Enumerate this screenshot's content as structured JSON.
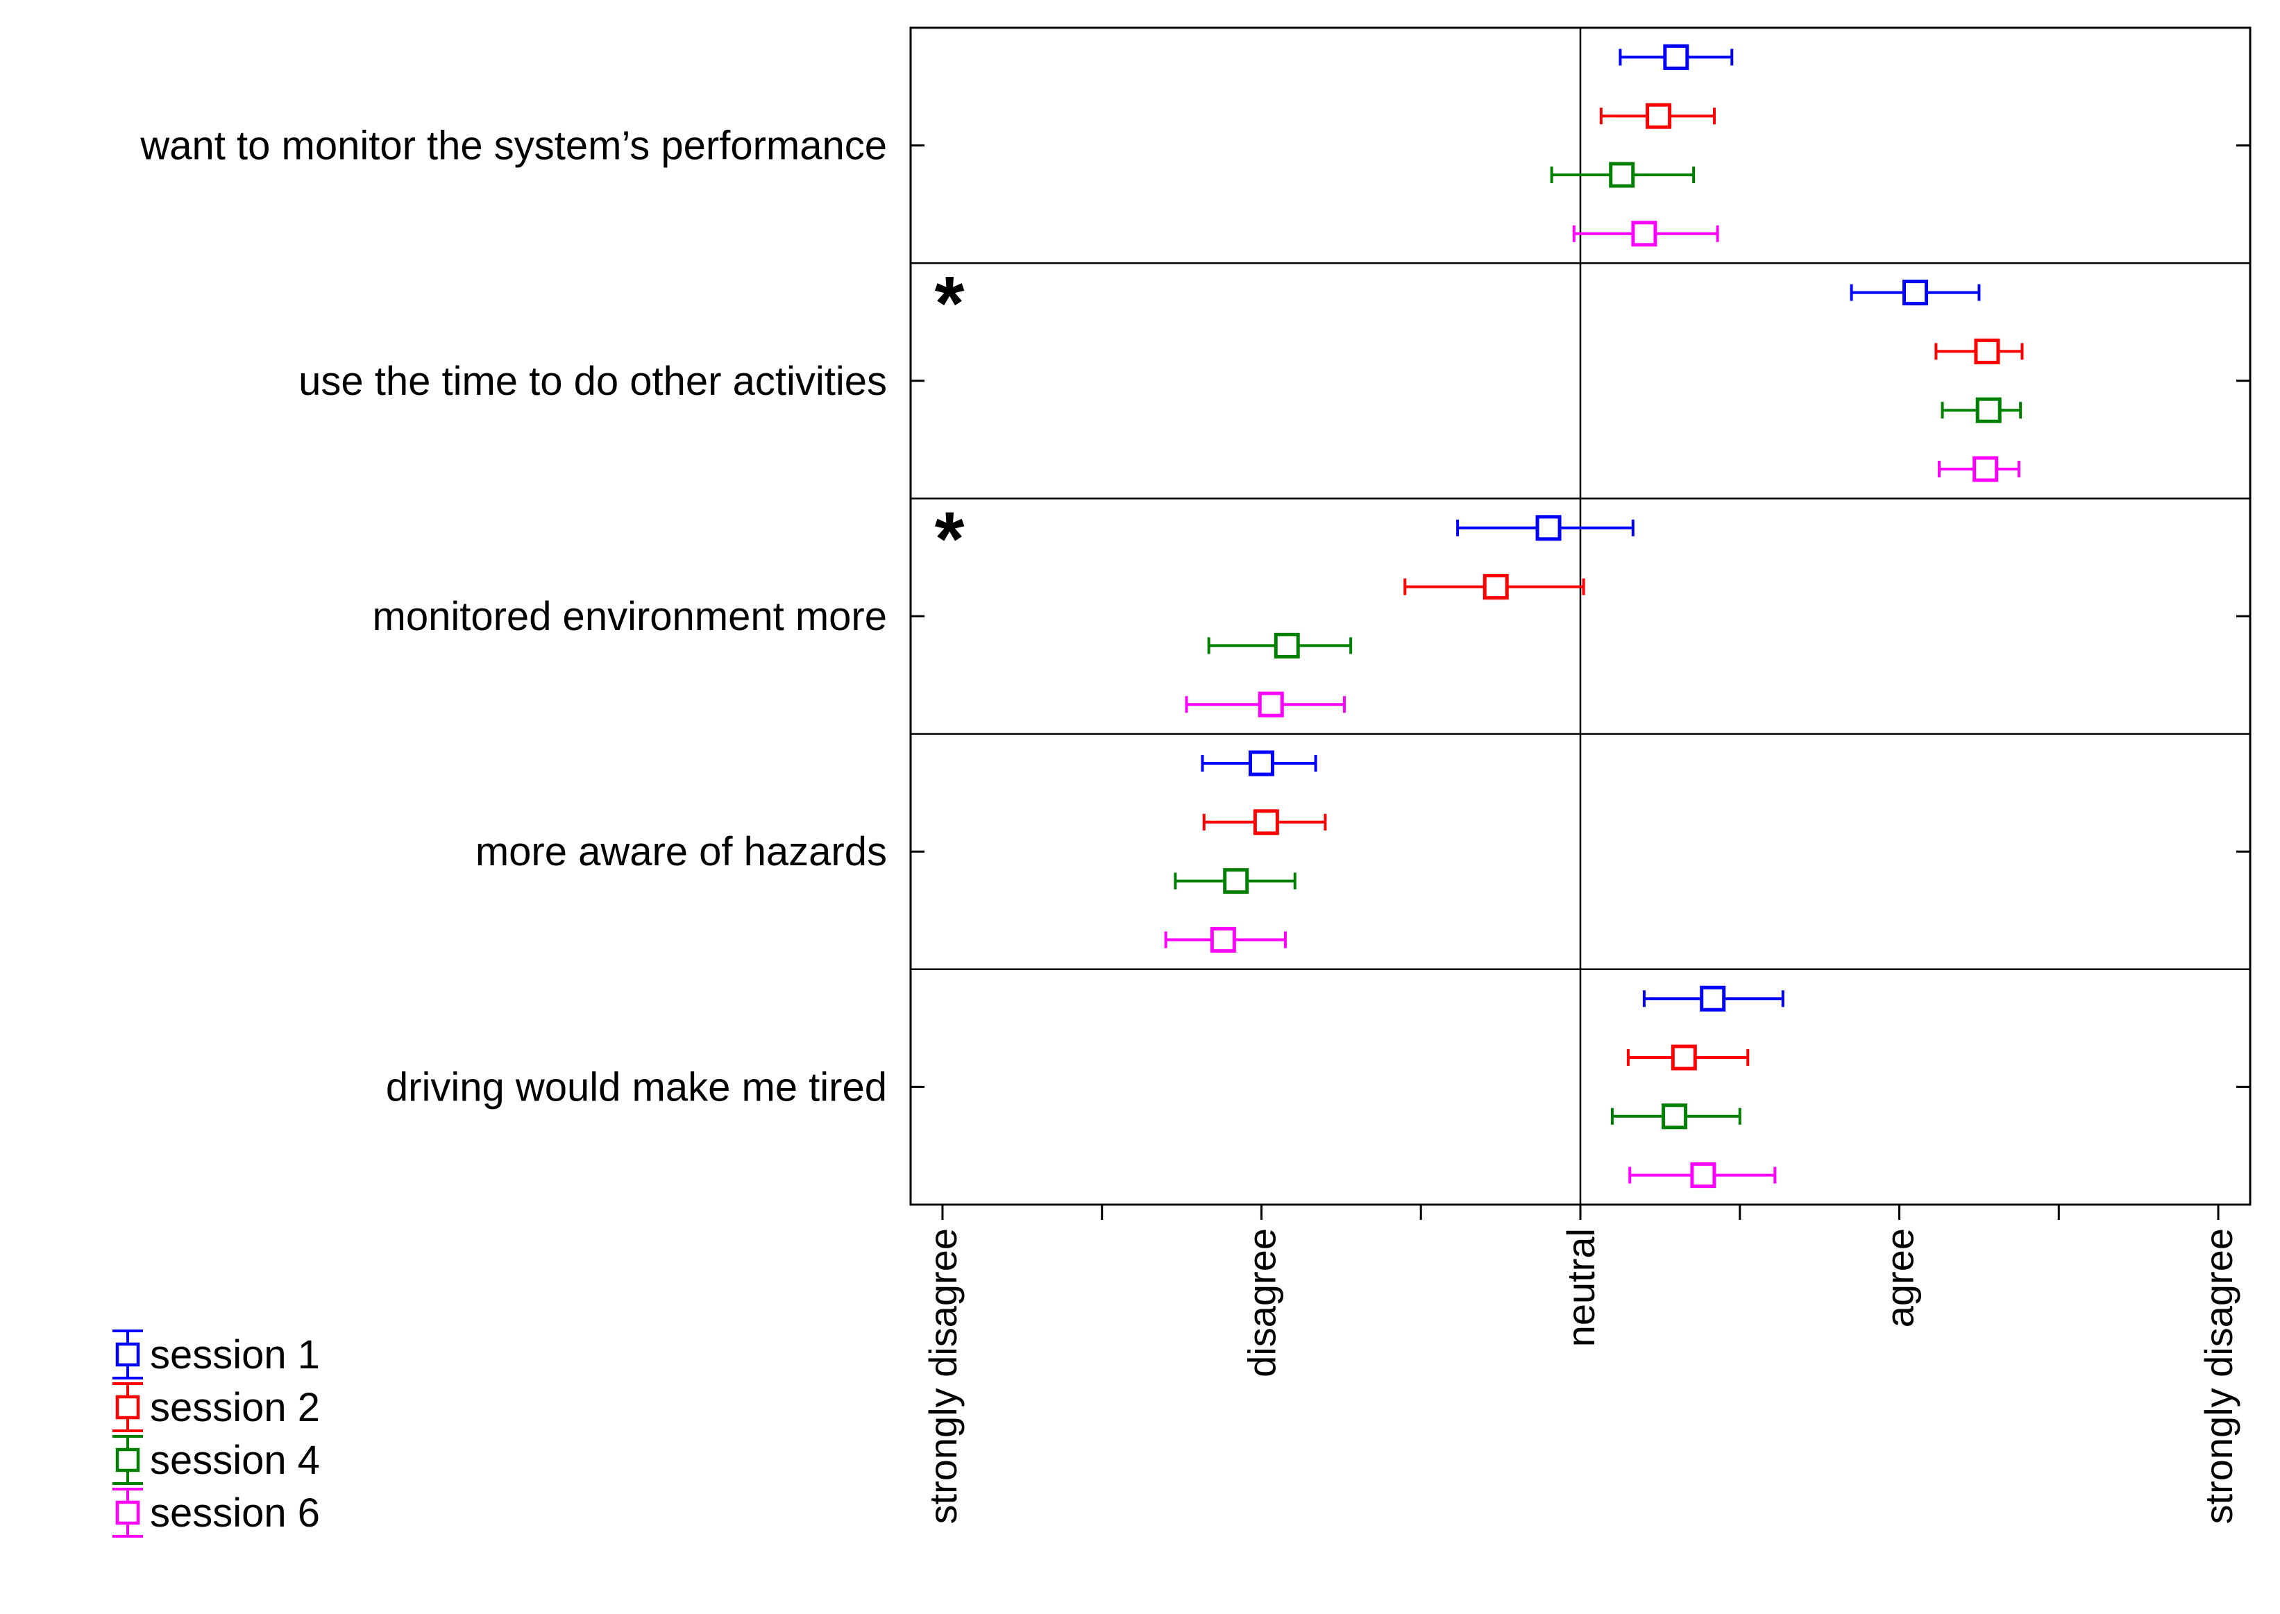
{
  "chart_data": {
    "type": "scatter",
    "subtype": "horizontal error-bar plot",
    "x_ticks": [
      {
        "value": 1,
        "label": "strongly disagree"
      },
      {
        "value": 2,
        "label": ""
      },
      {
        "value": 3,
        "label": "disagree"
      },
      {
        "value": 4,
        "label": ""
      },
      {
        "value": 5,
        "label": "neutral"
      },
      {
        "value": 6,
        "label": ""
      },
      {
        "value": 7,
        "label": "agree"
      },
      {
        "value": 8,
        "label": ""
      },
      {
        "value": 9,
        "label": "strongly disagree"
      }
    ],
    "xlim": [
      0.8,
      9.2
    ],
    "reference_line_x": 5,
    "categories": [
      {
        "label": "want to monitor the system’s performance",
        "significant": false
      },
      {
        "label": "use the time to do other activities",
        "significant": true
      },
      {
        "label": "monitored environment more",
        "significant": true
      },
      {
        "label": "more aware of hazards",
        "significant": false
      },
      {
        "label": "driving would make me tired",
        "significant": false
      }
    ],
    "significance_marker": "*",
    "series": [
      {
        "name": "session 1",
        "color": "#0000ff",
        "mean": [
          5.6,
          7.1,
          4.8,
          3.0,
          5.83
        ],
        "lower": [
          5.25,
          6.7,
          4.23,
          2.63,
          5.4
        ],
        "upper": [
          5.95,
          7.5,
          5.33,
          3.34,
          6.27
        ]
      },
      {
        "name": "session 2",
        "color": "#ff0000",
        "mean": [
          5.49,
          7.55,
          4.47,
          3.03,
          5.65
        ],
        "lower": [
          5.13,
          7.23,
          3.9,
          2.64,
          5.3
        ],
        "upper": [
          5.84,
          7.77,
          5.02,
          3.4,
          6.05
        ]
      },
      {
        "name": "session 4",
        "color": "#008000",
        "mean": [
          5.26,
          7.56,
          3.16,
          2.84,
          5.59
        ],
        "lower": [
          4.82,
          7.27,
          2.67,
          2.46,
          5.2
        ],
        "upper": [
          5.71,
          7.76,
          3.56,
          3.21,
          6.0
        ]
      },
      {
        "name": "session 6",
        "color": "#ff00ff",
        "mean": [
          5.4,
          7.54,
          3.06,
          2.76,
          5.77
        ],
        "lower": [
          4.96,
          7.25,
          2.53,
          2.4,
          5.31
        ],
        "upper": [
          5.86,
          7.75,
          3.52,
          3.15,
          6.22
        ]
      }
    ]
  }
}
